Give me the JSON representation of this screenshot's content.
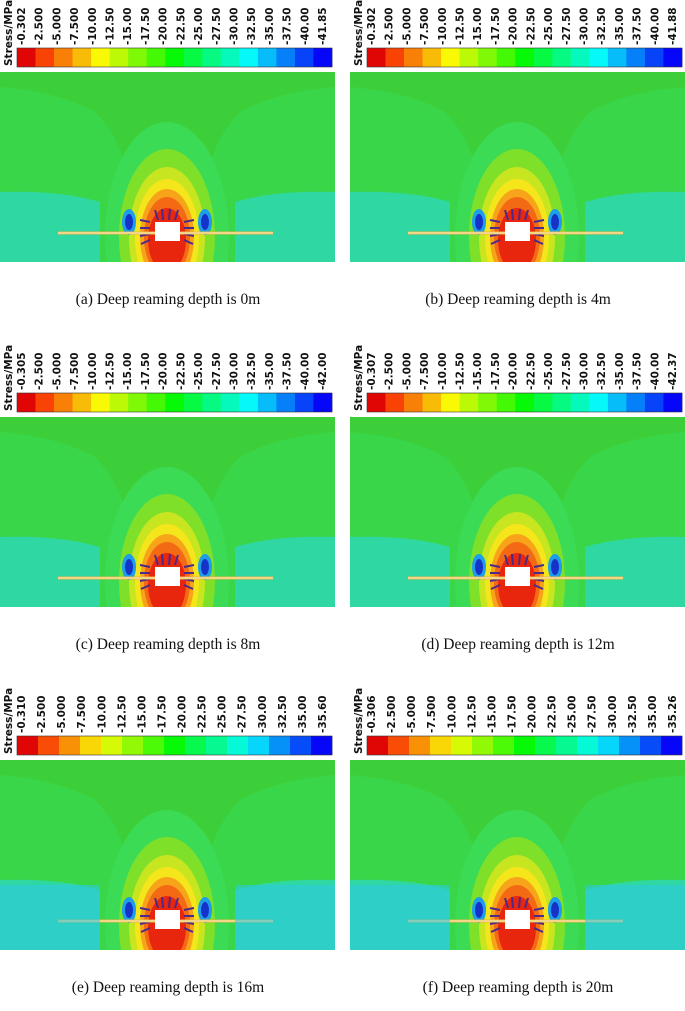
{
  "panels": [
    {
      "legend_title": "Stress/MPa",
      "legend_labels": [
        "-0.302",
        "-2.500",
        "-5.000",
        "-7.500",
        "-10.00",
        "-12.50",
        "-15.00",
        "-17.50",
        "-20.00",
        "-22.50",
        "-25.00",
        "-27.50",
        "-30.00",
        "-32.50",
        "-35.00",
        "-37.50",
        "-40.00",
        "-41.85"
      ],
      "caption": "(a) Deep reaming depth is 0m"
    },
    {
      "legend_title": "Stress/MPa",
      "legend_labels": [
        "-0.302",
        "-2.500",
        "-5.000",
        "-7.500",
        "-10.00",
        "-12.50",
        "-15.00",
        "-17.50",
        "-20.00",
        "-22.50",
        "-25.00",
        "-27.50",
        "-30.00",
        "-32.50",
        "-35.00",
        "-37.50",
        "-40.00",
        "-41.88"
      ],
      "caption": "(b) Deep reaming depth is 4m"
    },
    {
      "legend_title": "Stress/MPa",
      "legend_labels": [
        "-0.305",
        "-2.500",
        "-5.000",
        "-7.500",
        "-10.00",
        "-12.50",
        "-15.00",
        "-17.50",
        "-20.00",
        "-22.50",
        "-25.00",
        "-27.50",
        "-30.00",
        "-32.50",
        "-35.00",
        "-37.50",
        "-40.00",
        "-42.00"
      ],
      "caption": "(c) Deep reaming depth is 8m"
    },
    {
      "legend_title": "Stress/MPa",
      "legend_labels": [
        "-0.307",
        "-2.500",
        "-5.000",
        "-7.500",
        "-10.00",
        "-12.50",
        "-15.00",
        "-17.50",
        "-20.00",
        "-22.50",
        "-25.00",
        "-27.50",
        "-30.00",
        "-32.50",
        "-35.00",
        "-37.50",
        "-40.00",
        "-42.37"
      ],
      "caption": "(d) Deep reaming depth is 12m"
    },
    {
      "legend_title": "Stress/MPa",
      "legend_labels": [
        "-0.310",
        "-2.500",
        "-5.000",
        "-7.500",
        "-10.00",
        "-12.50",
        "-15.00",
        "-17.50",
        "-20.00",
        "-22.50",
        "-25.00",
        "-27.50",
        "-30.00",
        "-32.50",
        "-35.00",
        "-35.60"
      ],
      "caption": "(e) Deep reaming depth is 16m"
    },
    {
      "legend_title": "Stress/MPa",
      "legend_labels": [
        "-0.306",
        "-2.500",
        "-5.000",
        "-7.500",
        "-10.00",
        "-12.50",
        "-15.00",
        "-17.50",
        "-20.00",
        "-22.50",
        "-25.00",
        "-27.50",
        "-30.00",
        "-32.50",
        "-35.00",
        "-35.26"
      ],
      "caption": "(f) Deep reaming depth is 20m"
    }
  ]
}
